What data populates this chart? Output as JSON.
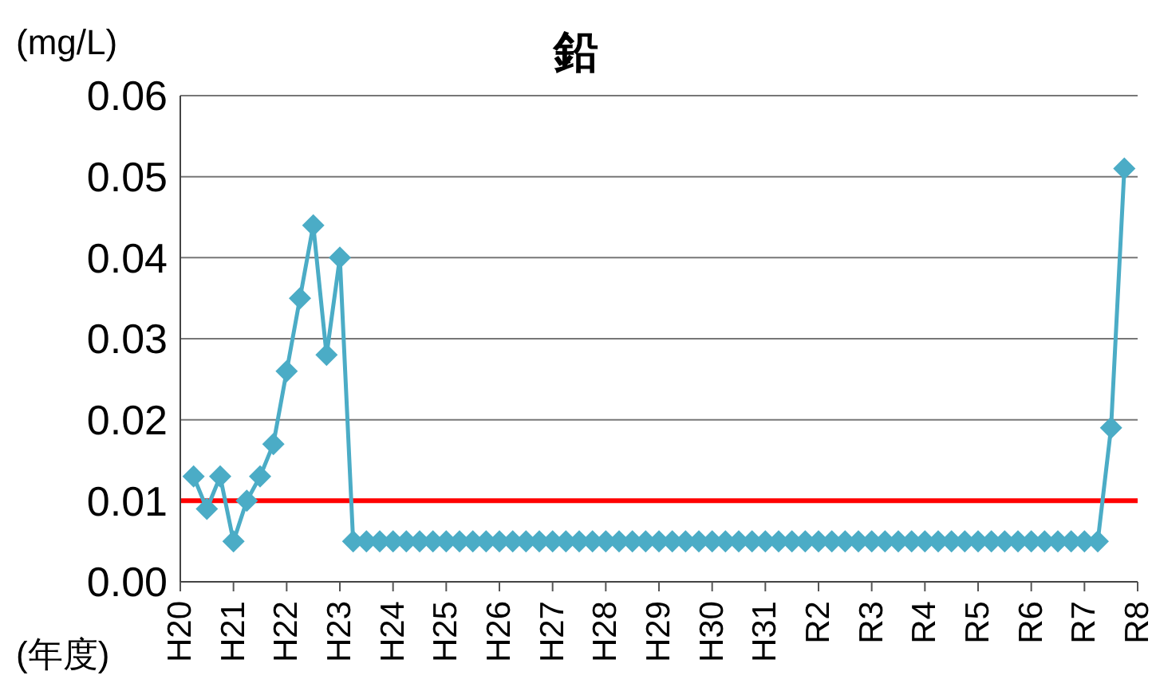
{
  "chart_data": {
    "type": "line",
    "title": "鉛",
    "ylabel": "(mg/L)",
    "xlabel": "(年度)",
    "categories": [
      "H20",
      null,
      null,
      null,
      "H21",
      null,
      null,
      null,
      "H22",
      null,
      null,
      null,
      "H23",
      null,
      null,
      null,
      "H24",
      null,
      null,
      null,
      "H25",
      null,
      null,
      null,
      "H26",
      null,
      null,
      null,
      "H27",
      null,
      null,
      null,
      "H28",
      null,
      null,
      null,
      "H29",
      null,
      null,
      null,
      "H30",
      null,
      null,
      null,
      "H31",
      null,
      null,
      null,
      "R2",
      null,
      null,
      null,
      "R3",
      null,
      null,
      null,
      "R4",
      null,
      null,
      null,
      "R5",
      null,
      null,
      null,
      "R6",
      null,
      null,
      null,
      "R7",
      null,
      null,
      null,
      "R8"
    ],
    "series": [
      {
        "color": "#4bacc6",
        "values": [
          null,
          0.013,
          0.009,
          0.013,
          0.005,
          0.01,
          0.013,
          0.017,
          0.026,
          0.035,
          0.044,
          0.028,
          0.04,
          0.005,
          0.005,
          0.005,
          0.005,
          0.005,
          0.005,
          0.005,
          0.005,
          0.005,
          0.005,
          0.005,
          0.005,
          0.005,
          0.005,
          0.005,
          0.005,
          0.005,
          0.005,
          0.005,
          0.005,
          0.005,
          0.005,
          0.005,
          0.005,
          0.005,
          0.005,
          0.005,
          0.005,
          0.005,
          0.005,
          0.005,
          0.005,
          0.005,
          0.005,
          0.005,
          0.005,
          0.005,
          0.005,
          0.005,
          0.005,
          0.005,
          0.005,
          0.005,
          0.005,
          0.005,
          0.005,
          0.005,
          0.005,
          0.005,
          0.005,
          0.005,
          0.005,
          0.005,
          0.005,
          0.005,
          0.005,
          0.005,
          0.019,
          0.051,
          null
        ]
      }
    ],
    "ylim": [
      0,
      0.06
    ],
    "yticks": [
      {
        "value": 0,
        "label": "0.00"
      },
      {
        "value": 0.01,
        "label": "0.01"
      },
      {
        "value": 0.02,
        "label": "0.02"
      },
      {
        "value": 0.03,
        "label": "0.03"
      },
      {
        "value": 0.04,
        "label": "0.04"
      },
      {
        "value": 0.05,
        "label": "0.05"
      },
      {
        "value": 0.06,
        "label": "0.06"
      }
    ],
    "ref_lines": [
      {
        "axis": "y",
        "value": 0.01,
        "color": "#ff0000"
      }
    ],
    "grid": "y",
    "marker": "diamond",
    "line_style": "solid"
  }
}
